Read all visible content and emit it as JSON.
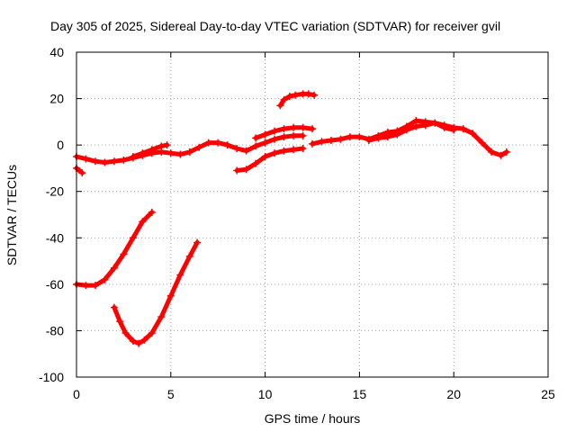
{
  "chart_data": {
    "type": "scatter",
    "title": "Day 305 of 2025, Sidereal Day-to-day VTEC variation (SDTVAR) for receiver gvil",
    "xlabel": "GPS time / hours",
    "ylabel": "SDTVAR / TECUs",
    "xlim": [
      0,
      25
    ],
    "ylim": [
      -100,
      40
    ],
    "x_ticks": [
      0,
      5,
      10,
      15,
      20,
      25
    ],
    "x_tick_labels": [
      "0",
      "5",
      "10",
      "15",
      "20",
      "25"
    ],
    "y_ticks": [
      -100,
      -80,
      -60,
      -40,
      -20,
      0,
      20,
      40
    ],
    "y_tick_labels": [
      "-100",
      "-80",
      "-60",
      "-40",
      "-20",
      "0",
      "20",
      "40"
    ],
    "grid": true,
    "legend": "none",
    "color": "#ff0000",
    "series": [
      {
        "x": [
          0.0,
          0.3
        ],
        "y": [
          -10.0,
          -12.0
        ]
      },
      {
        "x": [
          0.0,
          0.5,
          1.0,
          1.5,
          2.0,
          2.5,
          3.0,
          3.5,
          4.0,
          4.5,
          5.0,
          5.5,
          6.0,
          6.5,
          7.0,
          7.5,
          8.0,
          8.5,
          9.0,
          9.5,
          10.0,
          10.5,
          11.0,
          11.5,
          12.0
        ],
        "y": [
          -5.0,
          -6.0,
          -7.0,
          -7.5,
          -7.0,
          -6.5,
          -5.5,
          -4.5,
          -3.5,
          -3.0,
          -3.5,
          -4.0,
          -3.0,
          -1.0,
          1.0,
          1.0,
          0.0,
          -1.5,
          -2.5,
          -0.5,
          1.0,
          2.5,
          3.5,
          4.0,
          4.0
        ]
      },
      {
        "x": [
          3.0,
          3.5,
          4.0,
          4.5,
          4.8
        ],
        "y": [
          -5.0,
          -3.5,
          -2.0,
          -0.5,
          0.0
        ]
      },
      {
        "x": [
          8.5,
          9.0,
          9.5,
          10.0,
          10.5,
          11.0,
          11.5,
          12.0
        ],
        "y": [
          -11.0,
          -10.5,
          -8.0,
          -5.0,
          -3.5,
          -2.5,
          -2.0,
          -1.5
        ]
      },
      {
        "x": [
          9.5,
          10.0,
          10.5,
          11.0,
          11.5,
          12.0,
          12.5
        ],
        "y": [
          3.0,
          4.5,
          6.0,
          7.0,
          7.5,
          7.5,
          7.0
        ]
      },
      {
        "x": [
          10.8,
          11.0,
          11.3,
          11.6,
          12.0,
          12.3,
          12.6
        ],
        "y": [
          17.0,
          19.5,
          21.0,
          21.5,
          22.0,
          22.0,
          21.5
        ]
      },
      {
        "x": [
          12.5,
          13.0,
          13.5,
          14.0,
          14.5,
          15.0,
          15.5,
          16.0,
          16.5,
          17.0,
          17.5,
          18.0,
          18.5,
          19.0,
          19.5,
          20.0,
          20.5,
          21.0,
          21.5,
          22.0,
          22.5,
          22.8
        ],
        "y": [
          0.5,
          1.5,
          2.0,
          2.5,
          3.5,
          3.5,
          2.5,
          4.0,
          5.5,
          6.0,
          8.0,
          10.5,
          10.0,
          9.5,
          8.5,
          7.5,
          7.0,
          5.0,
          1.0,
          -3.0,
          -4.5,
          -3.0
        ]
      },
      {
        "x": [
          15.5,
          16.0,
          16.5,
          17.0,
          17.5,
          18.0,
          18.5,
          19.0,
          19.5,
          20.0
        ],
        "y": [
          2.0,
          3.0,
          3.5,
          4.5,
          6.5,
          8.0,
          8.5,
          9.5,
          7.5,
          6.5
        ]
      },
      {
        "x": [
          0.0,
          0.5,
          1.0,
          1.5,
          2.0,
          2.5,
          3.0,
          3.5,
          4.0
        ],
        "y": [
          -60.0,
          -60.5,
          -60.5,
          -58.0,
          -53.0,
          -47.0,
          -40.0,
          -33.0,
          -29.0
        ]
      },
      {
        "x": [
          2.0,
          2.3,
          2.6,
          3.0,
          3.3,
          3.6,
          4.0,
          4.5,
          5.0,
          5.5,
          6.0,
          6.4
        ],
        "y": [
          -70.0,
          -76.0,
          -81.0,
          -84.5,
          -85.5,
          -84.0,
          -81.0,
          -74.0,
          -65.0,
          -56.0,
          -48.0,
          -42.0
        ]
      }
    ]
  }
}
